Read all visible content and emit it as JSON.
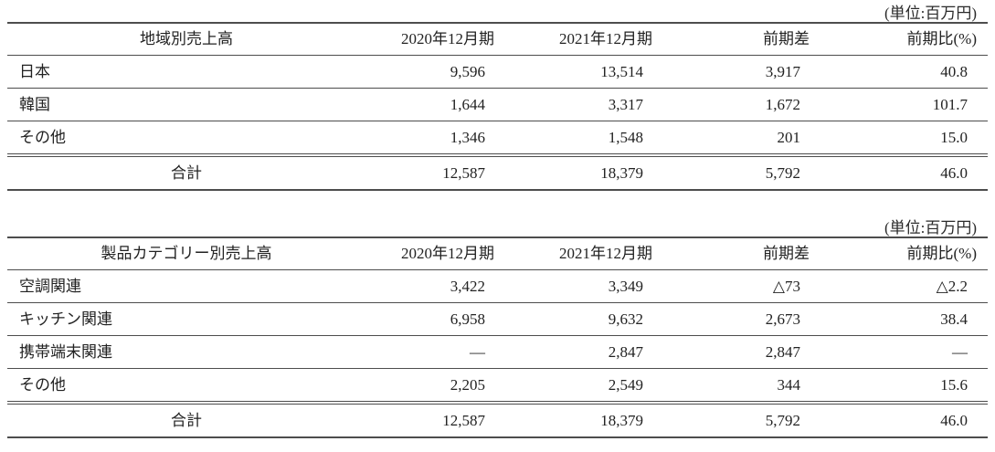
{
  "tables": [
    {
      "unit_label": "(単位:百万円)",
      "title": "地域別売上高",
      "columns": {
        "c2020": "2020年12月期",
        "c2021": "2021年12月期",
        "diff": "前期差",
        "ratio": "前期比(%)"
      },
      "rows": [
        {
          "label": "日本",
          "c2020": "9,596",
          "c2021": "13,514",
          "diff": "3,917",
          "ratio": "40.8"
        },
        {
          "label": "韓国",
          "c2020": "1,644",
          "c2021": "3,317",
          "diff": "1,672",
          "ratio": "101.7"
        },
        {
          "label": "その他",
          "c2020": "1,346",
          "c2021": "1,548",
          "diff": "201",
          "ratio": "15.0"
        }
      ],
      "total": {
        "label": "合計",
        "c2020": "12,587",
        "c2021": "18,379",
        "diff": "5,792",
        "ratio": "46.0"
      }
    },
    {
      "unit_label": "(単位:百万円)",
      "title": "製品カテゴリー別売上高",
      "columns": {
        "c2020": "2020年12月期",
        "c2021": "2021年12月期",
        "diff": "前期差",
        "ratio": "前期比(%)"
      },
      "rows": [
        {
          "label": "空調関連",
          "c2020": "3,422",
          "c2021": "3,349",
          "diff": "△73",
          "ratio": "△2.2"
        },
        {
          "label": "キッチン関連",
          "c2020": "6,958",
          "c2021": "9,632",
          "diff": "2,673",
          "ratio": "38.4"
        },
        {
          "label": "携帯端末関連",
          "c2020": "—",
          "c2021": "2,847",
          "diff": "2,847",
          "ratio": "—"
        },
        {
          "label": "その他",
          "c2020": "2,205",
          "c2021": "2,549",
          "diff": "344",
          "ratio": "15.6"
        }
      ],
      "total": {
        "label": "合計",
        "c2020": "12,587",
        "c2021": "18,379",
        "diff": "5,792",
        "ratio": "46.0"
      }
    }
  ]
}
